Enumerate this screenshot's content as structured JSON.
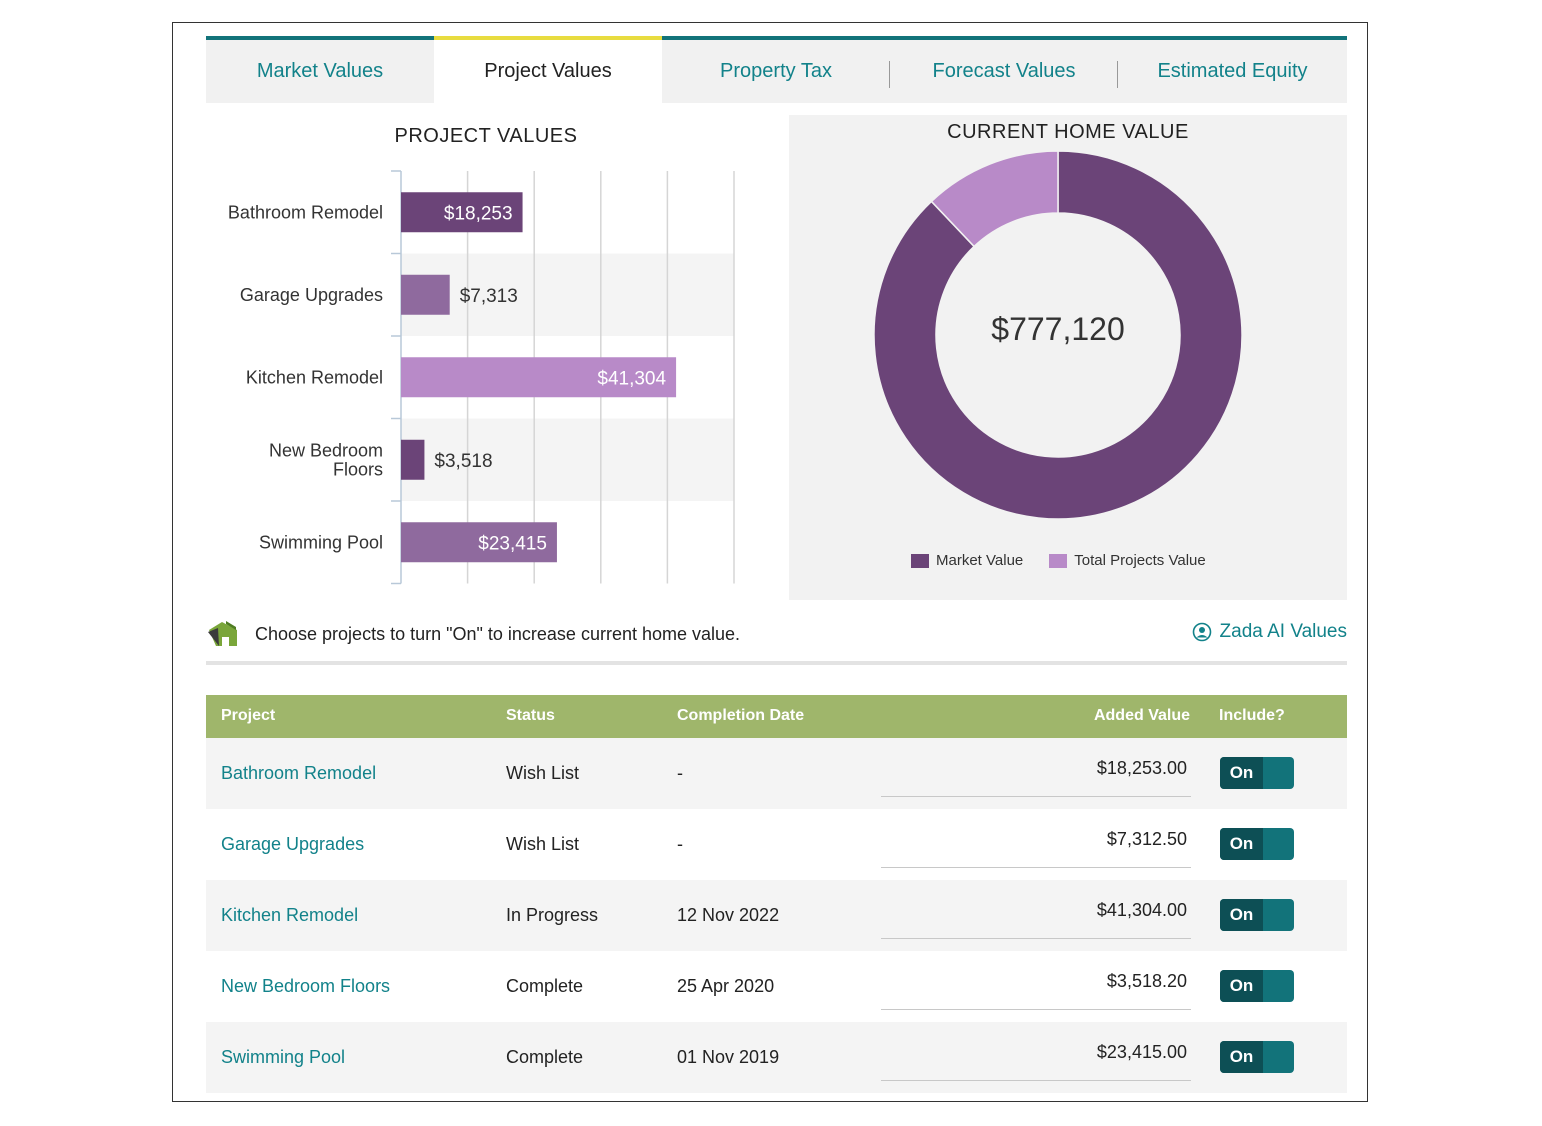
{
  "tabs": [
    {
      "label": "Market Values",
      "active": false
    },
    {
      "label": "Project Values",
      "active": true
    },
    {
      "label": "Property Tax",
      "active": false
    },
    {
      "label": "Forecast Values",
      "active": false
    },
    {
      "label": "Estimated Equity",
      "active": false
    }
  ],
  "chart_data": [
    {
      "type": "bar",
      "orientation": "horizontal",
      "title": "PROJECT VALUES",
      "categories": [
        "Bathroom Remodel",
        "Garage Upgrades",
        "Kitchen Remodel",
        "New Bedroom Floors",
        "Swimming Pool"
      ],
      "category_lines": [
        [
          "Bathroom Remodel"
        ],
        [
          "Garage Upgrades"
        ],
        [
          "Kitchen Remodel"
        ],
        [
          "New Bedroom",
          "Floors"
        ],
        [
          "Swimming Pool"
        ]
      ],
      "values": [
        18253,
        7313,
        41304,
        3518,
        23415
      ],
      "data_labels": [
        "$18,253",
        "$7,313",
        "$41,304",
        "$3,518",
        "$23,415"
      ],
      "colors": [
        "#6b4478",
        "#8f6a9e",
        "#b88ac8",
        "#6b4478",
        "#8f6a9e"
      ],
      "xlim": [
        0,
        50000
      ],
      "grid": true
    },
    {
      "type": "pie",
      "style": "donut",
      "title": "CURRENT HOME VALUE",
      "center_label": "$777,120",
      "labels": [
        "Market Value",
        "Total Projects Value"
      ],
      "values": [
        683317,
        93803
      ],
      "colors": [
        "#6b4478",
        "#b88ac8"
      ],
      "legend": "bottom"
    }
  ],
  "hint": {
    "text": "Choose projects to turn \"On\" to increase current home value."
  },
  "zada": {
    "label": "Zada AI Values"
  },
  "table": {
    "headers": {
      "project": "Project",
      "status": "Status",
      "date": "Completion Date",
      "value": "Added Value",
      "include": "Include?"
    },
    "rows": [
      {
        "project": "Bathroom Remodel",
        "status": "Wish List",
        "date": "-",
        "value": "$18,253.00",
        "include": "On"
      },
      {
        "project": "Garage Upgrades",
        "status": "Wish List",
        "date": "-",
        "value": "$7,312.50",
        "include": "On"
      },
      {
        "project": "Kitchen Remodel",
        "status": "In Progress",
        "date": "12 Nov 2022",
        "value": "$41,304.00",
        "include": "On"
      },
      {
        "project": "New Bedroom Floors",
        "status": "Complete",
        "date": "25 Apr 2020",
        "value": "$3,518.20",
        "include": "On"
      },
      {
        "project": "Swimming Pool",
        "status": "Complete",
        "date": "01 Nov 2019",
        "value": "$23,415.00",
        "include": "On"
      }
    ]
  },
  "colors": {
    "teal": "#12828a",
    "tab_active": "#e8dc3f",
    "header_green": "#9fb66b",
    "purple_dark": "#6b4478",
    "purple_light": "#b88ac8"
  }
}
